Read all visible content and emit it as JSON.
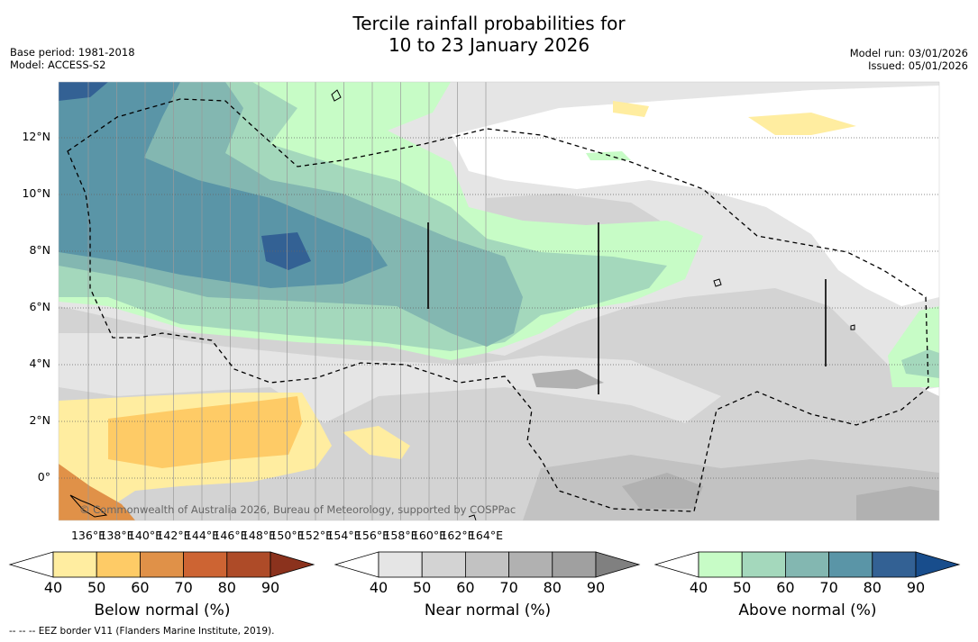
{
  "title": {
    "line1": "Tercile rainfall probabilities for",
    "line2": "10 to 23 January 2026"
  },
  "meta_left": {
    "base_period": "Base period: 1981-2018",
    "model": "Model: ACCESS-S2"
  },
  "meta_right": {
    "model_run": "Model run: 03/01/2026",
    "issued": "Issued: 05/01/2026"
  },
  "map": {
    "lon_labels": [
      "136°E",
      "138°E",
      "140°E",
      "142°E",
      "144°E",
      "146°E",
      "148°E",
      "150°E",
      "152°E",
      "154°E",
      "156°E",
      "158°E",
      "160°E",
      "162°E",
      "164°E"
    ],
    "lat_labels": [
      "12°N",
      "10°N",
      "8°N",
      "6°N",
      "4°N",
      "2°N",
      "0°"
    ],
    "copyright": "© Commonwealth of Australia 2026, Bureau of Meteorology, supported by COSPPac"
  },
  "legend": {
    "below": {
      "title": "Below normal (%)",
      "ticks": [
        "40",
        "50",
        "60",
        "70",
        "80",
        "90"
      ],
      "colors": [
        "#ffffff",
        "#ffeda0",
        "#fecb66",
        "#e09148",
        "#cd6433",
        "#ae4b28",
        "#8b321d"
      ]
    },
    "near": {
      "title": "Near normal (%)",
      "ticks": [
        "40",
        "50",
        "60",
        "70",
        "80",
        "90"
      ],
      "colors": [
        "#ffffff",
        "#e5e5e5",
        "#d3d3d3",
        "#c2c2c2",
        "#b1b1b1",
        "#a0a0a0",
        "#808080"
      ]
    },
    "above": {
      "title": "Above normal (%)",
      "ticks": [
        "40",
        "50",
        "60",
        "70",
        "80",
        "90"
      ],
      "colors": [
        "#ffffff",
        "#c7fcc6",
        "#a4d8bc",
        "#83b7b1",
        "#5a95a7",
        "#336194",
        "#184d8c"
      ]
    }
  },
  "footer": "--  --  -- EEZ border V11 (Flanders Marine Institute, 2019)."
}
